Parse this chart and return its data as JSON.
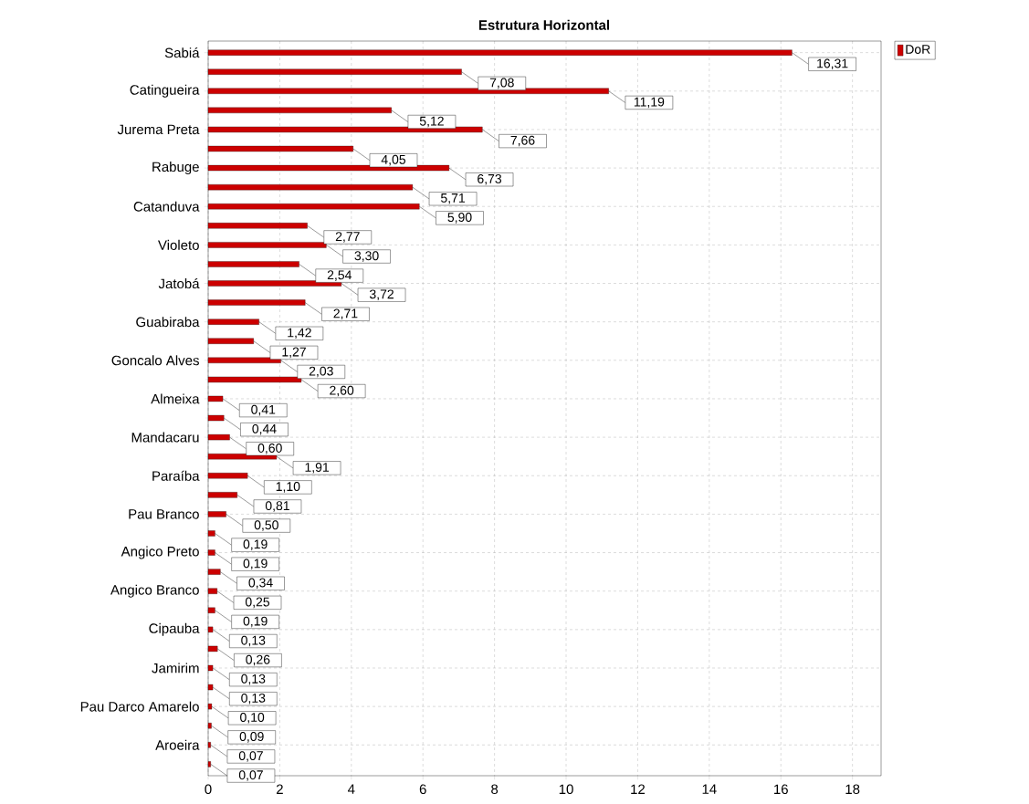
{
  "chart_data": {
    "type": "bar",
    "orientation": "horizontal",
    "title": "Estrutura Horizontal",
    "categories": [
      "Sabiá",
      null,
      "Catingueira",
      null,
      "Jurema Preta",
      null,
      "Rabuge",
      null,
      "Catanduva",
      null,
      "Violeto",
      null,
      "Jatobá",
      null,
      "Guabiraba",
      null,
      "Goncalo Alves",
      null,
      "Almeixa",
      null,
      "Mandacaru",
      null,
      "Paraíba",
      null,
      "Pau Branco",
      null,
      "Angico Preto",
      null,
      "Angico Branco",
      null,
      "Cipauba",
      null,
      "Jamirim",
      null,
      "Pau Darco Amarelo",
      null,
      "Aroeira",
      null
    ],
    "series": [
      {
        "name": "DoR",
        "color": "#cc0000",
        "values": [
          16.31,
          7.08,
          11.19,
          5.12,
          7.66,
          4.05,
          6.73,
          5.71,
          5.9,
          2.77,
          3.3,
          2.54,
          3.72,
          2.71,
          1.42,
          1.27,
          2.03,
          2.6,
          0.41,
          0.44,
          0.6,
          1.91,
          1.1,
          0.81,
          0.5,
          0.19,
          0.19,
          0.34,
          0.25,
          0.19,
          0.13,
          0.26,
          0.13,
          0.13,
          0.1,
          0.09,
          0.07,
          0.07
        ],
        "value_labels": [
          "16,31",
          "7,08",
          "11,19",
          "5,12",
          "7,66",
          "4,05",
          "6,73",
          "5,71",
          "5,90",
          "2,77",
          "3,30",
          "2,54",
          "3,72",
          "2,71",
          "1,42",
          "1,27",
          "2,03",
          "2,60",
          "0,41",
          "0,44",
          "0,60",
          "1,91",
          "1,10",
          "0,81",
          "0,50",
          "0,19",
          "0,19",
          "0,34",
          "0,25",
          "0,19",
          "0,13",
          "0,26",
          "0,13",
          "0,13",
          "0,10",
          "0,09",
          "0,07",
          "0,07"
        ]
      }
    ],
    "xlim": [
      0,
      18.8
    ],
    "xticks": [
      0,
      2,
      4,
      6,
      8,
      10,
      12,
      14,
      16,
      18
    ],
    "grid": true,
    "legend": "top right"
  }
}
